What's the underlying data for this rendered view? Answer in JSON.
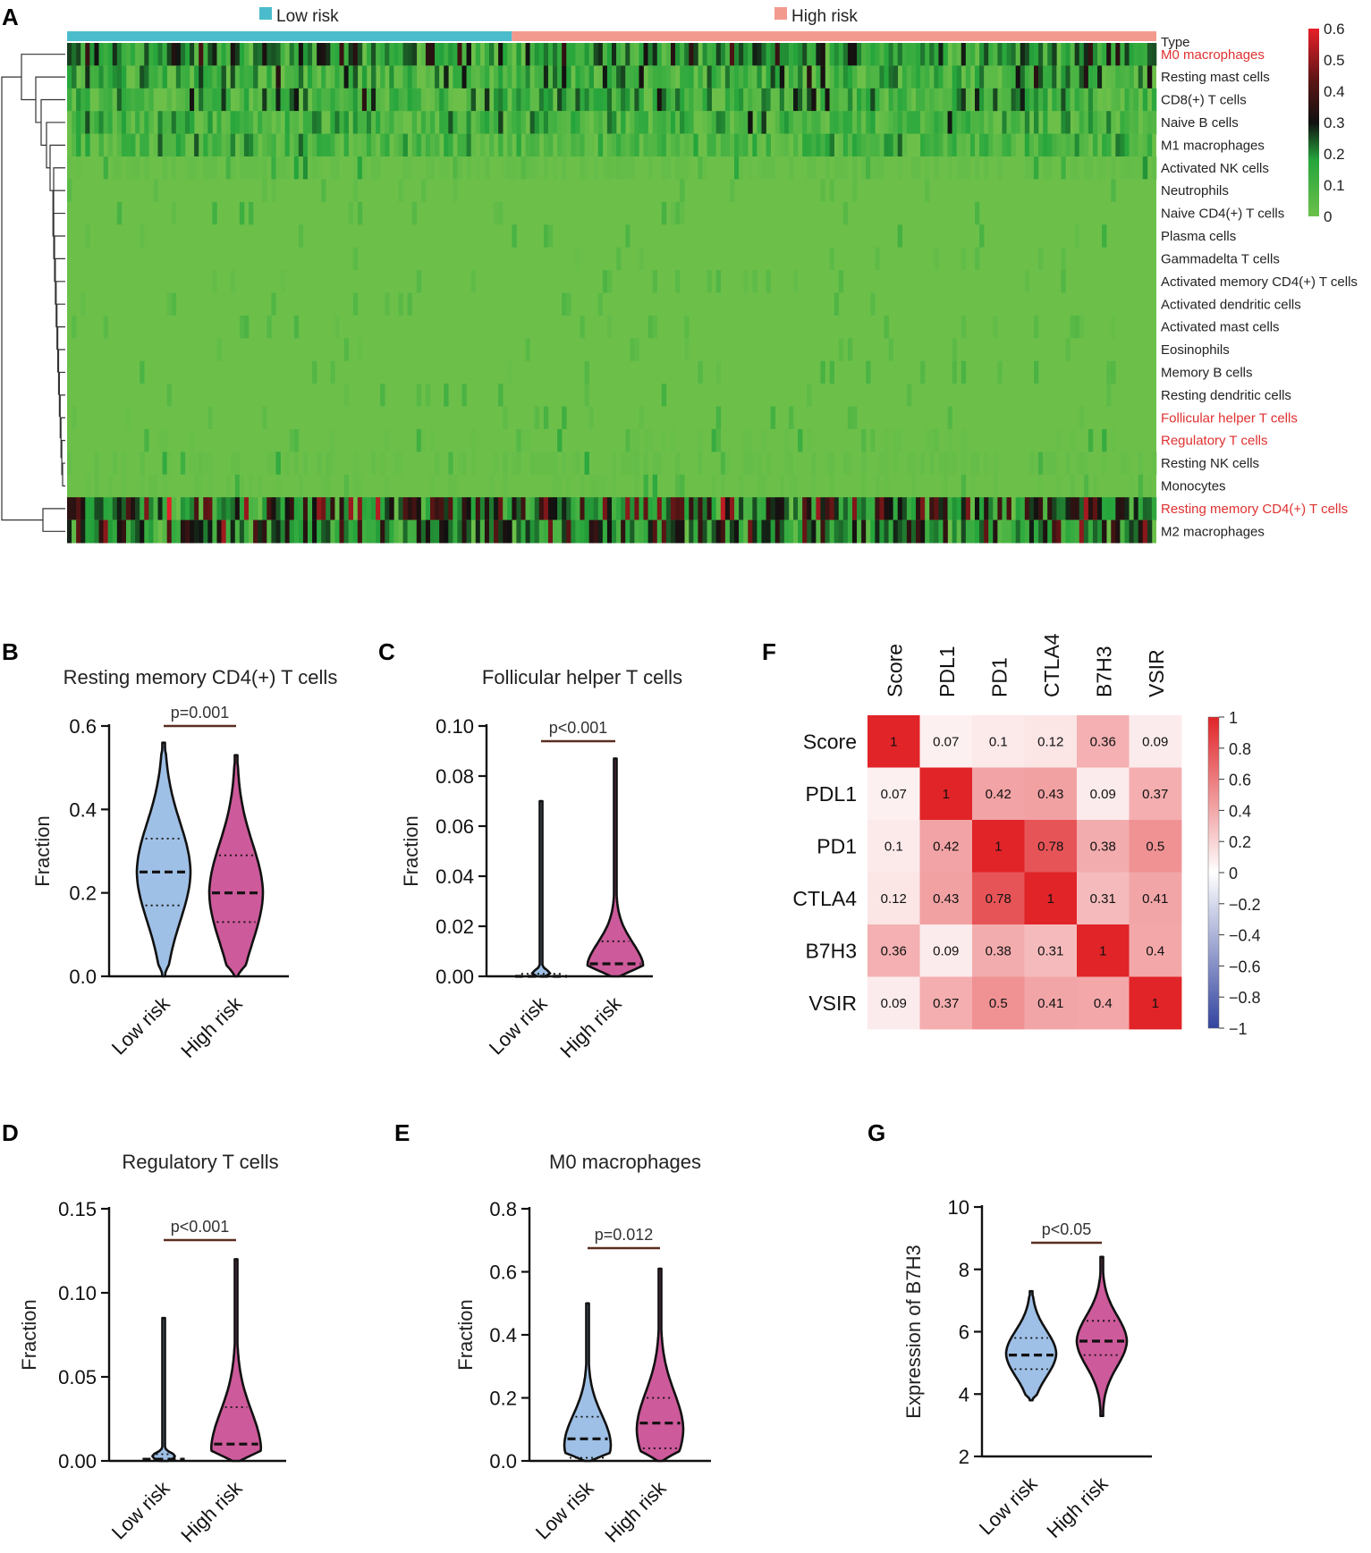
{
  "panel_labels": [
    "A",
    "B",
    "C",
    "D",
    "E",
    "F",
    "G"
  ],
  "colors": {
    "low": "#4bbccc",
    "high": "#f39a8f",
    "violin_low": "#9fc0e6",
    "violin_high": "#cd5a9b",
    "pbar": "#5a2e20",
    "hm_green": "#6cc04a",
    "hm_dark": "#111111",
    "hm_red": "#e8202a",
    "corr_red": "#e02428",
    "corr_white": "#ffffff",
    "corr_blue": "#3344a0"
  },
  "chart_data": [
    {
      "id": "A",
      "type": "heatmap",
      "legend": [
        {
          "name": "Low risk",
          "color": "#4bbccc"
        },
        {
          "name": "High risk",
          "color": "#f39a8f"
        }
      ],
      "group_split_fraction": 0.41,
      "n_samples": 240,
      "type_label": "Type",
      "rows": [
        {
          "name": "M0 macrophages",
          "highlight": true,
          "mean": 0.18,
          "spread": 0.12
        },
        {
          "name": "Resting mast cells",
          "highlight": false,
          "mean": 0.12,
          "spread": 0.12
        },
        {
          "name": "CD8(+) T cells",
          "highlight": false,
          "mean": 0.1,
          "spread": 0.12
        },
        {
          "name": "Naive B cells",
          "highlight": false,
          "mean": 0.09,
          "spread": 0.1
        },
        {
          "name": "M1 macrophages",
          "highlight": false,
          "mean": 0.08,
          "spread": 0.09
        },
        {
          "name": "Activated NK cells",
          "highlight": false,
          "mean": 0.04,
          "spread": 0.06
        },
        {
          "name": "Neutrophils",
          "highlight": false,
          "mean": 0.005,
          "spread": 0.02
        },
        {
          "name": "Naive CD4(+) T cells",
          "highlight": false,
          "mean": 0.01,
          "spread": 0.03
        },
        {
          "name": "Plasma cells",
          "highlight": false,
          "mean": 0.01,
          "spread": 0.03
        },
        {
          "name": "Gammadelta T cells",
          "highlight": false,
          "mean": 0.005,
          "spread": 0.02
        },
        {
          "name": "Activated memory CD4(+) T cells",
          "highlight": false,
          "mean": 0.005,
          "spread": 0.02
        },
        {
          "name": "Activated dendritic cells",
          "highlight": false,
          "mean": 0.005,
          "spread": 0.02
        },
        {
          "name": "Activated mast cells",
          "highlight": false,
          "mean": 0.005,
          "spread": 0.02
        },
        {
          "name": "Eosinophils",
          "highlight": false,
          "mean": 0.003,
          "spread": 0.015
        },
        {
          "name": "Memory B cells",
          "highlight": false,
          "mean": 0.006,
          "spread": 0.025
        },
        {
          "name": "Resting dendritic cells",
          "highlight": false,
          "mean": 0.008,
          "spread": 0.03
        },
        {
          "name": "Follicular helper T cells",
          "highlight": true,
          "mean": 0.01,
          "spread": 0.03
        },
        {
          "name": "Regulatory T cells",
          "highlight": true,
          "mean": 0.012,
          "spread": 0.035
        },
        {
          "name": "Resting NK cells",
          "highlight": false,
          "mean": 0.03,
          "spread": 0.05
        },
        {
          "name": "Monocytes",
          "highlight": false,
          "mean": 0.02,
          "spread": 0.04
        },
        {
          "name": "Resting memory CD4(+) T cells",
          "highlight": true,
          "mean": 0.26,
          "spread": 0.16
        },
        {
          "name": "M2 macrophages",
          "highlight": false,
          "mean": 0.22,
          "spread": 0.14
        }
      ],
      "colorbar": {
        "min": 0,
        "max": 0.6,
        "ticks": [
          "0.6",
          "0.5",
          "0.4",
          "0.3",
          "0.2",
          "0.1",
          "0"
        ]
      }
    },
    {
      "id": "B",
      "type": "violin",
      "title": "Resting memory CD4(+) T cells",
      "ylabel": "Fraction",
      "ylim": [
        0,
        0.6
      ],
      "yticks": [
        "0.0",
        "0.2",
        "0.4",
        "0.6"
      ],
      "categories": [
        "Low risk",
        "High risk"
      ],
      "p_label": "p=0.001",
      "groups": [
        {
          "min": 0.0,
          "max": 0.56,
          "median": 0.25,
          "q1": 0.17,
          "q3": 0.33,
          "mode": 0.25
        },
        {
          "min": 0.0,
          "max": 0.53,
          "median": 0.2,
          "q1": 0.13,
          "q3": 0.29,
          "mode": 0.2
        }
      ]
    },
    {
      "id": "C",
      "type": "violin",
      "title": "Follicular helper T cells",
      "ylabel": "Fraction",
      "ylim": [
        0,
        0.1
      ],
      "yticks": [
        "0.00",
        "0.02",
        "0.04",
        "0.06",
        "0.08",
        "0.10"
      ],
      "categories": [
        "Low risk",
        "High risk"
      ],
      "p_label": "p<0.001",
      "groups": [
        {
          "min": 0.0,
          "max": 0.07,
          "median": 0.0,
          "q1": 0.0,
          "q3": 0.001,
          "mode": 0.0
        },
        {
          "min": 0.0,
          "max": 0.087,
          "median": 0.005,
          "q1": 0.0,
          "q3": 0.014,
          "mode": 0.003
        }
      ]
    },
    {
      "id": "D",
      "type": "violin",
      "title": "Regulatory T cells",
      "ylabel": "Fraction",
      "ylim": [
        0,
        0.15
      ],
      "yticks": [
        "0.00",
        "0.05",
        "0.10",
        "0.15"
      ],
      "categories": [
        "Low risk",
        "High risk"
      ],
      "p_label": "p<0.001",
      "groups": [
        {
          "min": 0.0,
          "max": 0.085,
          "median": 0.001,
          "q1": 0.0,
          "q3": 0.004,
          "mode": 0.0
        },
        {
          "min": 0.0,
          "max": 0.12,
          "median": 0.01,
          "q1": 0.0,
          "q3": 0.032,
          "mode": 0.006
        }
      ]
    },
    {
      "id": "E",
      "type": "violin",
      "title": "M0 macrophages",
      "ylabel": "Fraction",
      "ylim": [
        0,
        0.8
      ],
      "yticks": [
        "0.0",
        "0.2",
        "0.4",
        "0.6",
        "0.8"
      ],
      "categories": [
        "Low risk",
        "High risk"
      ],
      "p_label": "p=0.012",
      "groups": [
        {
          "min": 0.0,
          "max": 0.5,
          "median": 0.07,
          "q1": 0.01,
          "q3": 0.14,
          "mode": 0.05
        },
        {
          "min": 0.0,
          "max": 0.61,
          "median": 0.12,
          "q1": 0.04,
          "q3": 0.2,
          "mode": 0.1
        }
      ]
    },
    {
      "id": "G",
      "type": "violin",
      "title": "",
      "ylabel": "Expression of B7H3",
      "ylim": [
        2,
        10
      ],
      "yticks": [
        "2",
        "4",
        "6",
        "8",
        "10"
      ],
      "categories": [
        "Low risk",
        "High risk"
      ],
      "p_label": "p<0.05",
      "groups": [
        {
          "min": 3.8,
          "max": 7.3,
          "median": 5.25,
          "q1": 4.8,
          "q3": 5.8,
          "mode": 5.3
        },
        {
          "min": 3.3,
          "max": 8.4,
          "median": 5.7,
          "q1": 5.25,
          "q3": 6.35,
          "mode": 5.7
        }
      ]
    },
    {
      "id": "F",
      "type": "correlation-heatmap",
      "labels": [
        "Score",
        "PDL1",
        "PD1",
        "CTLA4",
        "B7H3",
        "VSIR"
      ],
      "matrix": [
        [
          1,
          0.07,
          0.1,
          0.12,
          0.36,
          0.09
        ],
        [
          0.07,
          1,
          0.42,
          0.43,
          0.09,
          0.37
        ],
        [
          0.1,
          0.42,
          1,
          0.78,
          0.38,
          0.5
        ],
        [
          0.12,
          0.43,
          0.78,
          1,
          0.31,
          0.41
        ],
        [
          0.36,
          0.09,
          0.38,
          0.31,
          1,
          0.4
        ],
        [
          0.09,
          0.37,
          0.5,
          0.41,
          0.4,
          1
        ]
      ],
      "colorbar": {
        "min": -1,
        "max": 1,
        "ticks": [
          "1",
          "0.8",
          "0.6",
          "0.4",
          "0.2",
          "0",
          "−0.2",
          "−0.4",
          "−0.6",
          "−0.8",
          "−1"
        ]
      }
    }
  ]
}
